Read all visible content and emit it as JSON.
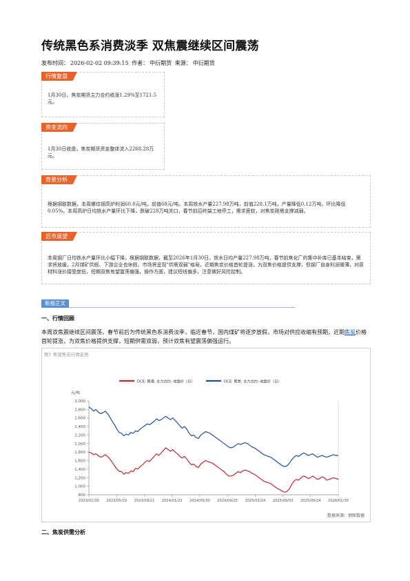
{
  "article": {
    "title": "传统黑色系消费淡季 双焦震继续区间震荡",
    "meta": {
      "publish_label": "发布时间：",
      "publish_time": "2026-02-02 09:39:15",
      "author_label": "作者：",
      "author": "中衍期货",
      "source_label": "来源：",
      "source": "中衍期货"
    }
  },
  "summary_boxes": [
    {
      "tag": "行情复盘",
      "text": "1月30日，焦炭期货主力合约收涨1.29%至1721.5元。"
    },
    {
      "tag": "资金流向",
      "text": "1月30日收盘，焦炭期货资金整体流入2268.28万元。"
    },
    {
      "tag": "背景分析",
      "text": "根据钢联数据，本周螺纹钢高炉利润60.8元/吨，前值68元/吨，本周铁水产量227.98万吨，前值228.1万吨，产量降低0.12万吨，环比降低0.05%。本周高炉日均铁水产量环比下降，跌破228万吨关口，春节前后终端工地停工，需求疲软，对焦炭刚需支撑减弱。"
    },
    {
      "tag": "后市展望",
      "text": "本周钢厂日均铁水产量环比小幅下降，根据钢联数据，截至2026年1月30日，铁水日均产量227.98万吨，春节前焦化厂的集中补库已基本结束，需求将放缓，2月煤矿供假、下游企业也休假，市场将呈现\"供需双弱\"格局，近期焦炭价格首轮提涨，为双焦价格提供支撑，但钢厂自身利润微薄，对原材料涨价接受度低，短期双焦有望震荡偏强，操作方面，建议短线偏多，注意做好风险控制。"
    }
  ],
  "section_label": "新报正文",
  "section1": {
    "heading": "一、行情回顾",
    "para_before": "本周双焦震继续区间震荡，春节前后为传统黑色系消费淡季，临近春节，国内煤矿将逐步放假，市场对供应收缩有预期，近期",
    "link": "焦炭",
    "para_after": "价格首轮提涨，为双焦价格提供支撑，短期供需双弱，预计双焦有望震荡偏强运行。"
  },
  "section2": {
    "heading": "二、焦炭供需分析"
  },
  "chart": {
    "caption": "图1 焦煤焦炭行情走势",
    "source": "数据来源：钢联数据"
  },
  "chart_data": {
    "type": "line",
    "ylabel": "元/吨",
    "ylim": [
      800,
      3000
    ],
    "yticks": [
      800,
      1000,
      1200,
      1400,
      1600,
      1800,
      2000,
      2200,
      2400,
      2600,
      2800,
      3000
    ],
    "ytick_labels": [
      "800",
      "1,000",
      "1,200",
      "1,400",
      "1,600",
      "1,800",
      "2,000",
      "2,200",
      "2,400",
      "2,600",
      "2,800",
      "3,000"
    ],
    "x_tick_labels": [
      "2023/01/30",
      "2023/05/29",
      "2023/09/21",
      "2024/01/23",
      "2024/05/30",
      "2024/09/25",
      "2025/01/24",
      "2025/06/03",
      "2025/09/24",
      "2026/01/30"
    ],
    "series": [
      {
        "name": "DCE: 焦煤: 主力合约: 收盘价（日）",
        "color": "#c0272d",
        "values": [
          1800,
          1780,
          1740,
          1760,
          1720,
          1680,
          1700,
          1740,
          1700,
          1640,
          1560,
          1480,
          1400,
          1350,
          1340,
          1280,
          1320,
          1300,
          1360,
          1340,
          1420,
          1400,
          1460,
          1500,
          1560,
          1600,
          1580,
          1640,
          1700,
          1760,
          1720,
          1780,
          1840,
          1900,
          1860,
          1820,
          1860,
          1800,
          1760,
          1700,
          1660,
          1700,
          1640,
          1560,
          1500,
          1520,
          1460,
          1440,
          1520,
          1560,
          1600,
          1580,
          1560,
          1540,
          1500,
          1460,
          1420,
          1380,
          1340,
          1280,
          1240,
          1240,
          1260,
          1300,
          1340,
          1320,
          1360,
          1380,
          1360,
          1340,
          1300,
          1280,
          1240,
          1200,
          1160,
          1120,
          1100,
          1080,
          1060,
          1020,
          980,
          940,
          920,
          880,
          860,
          880,
          940,
          1040,
          1120,
          1160,
          1140,
          1200,
          1240,
          1220,
          1180,
          1200,
          1240,
          1200,
          1160,
          1180,
          1220,
          1200,
          1140,
          1160,
          1180,
          1200,
          1180,
          1160
        ]
      },
      {
        "name": "DCE: 焦炭: 主力合约: 收盘价（日）",
        "color": "#1f4e9b",
        "values": [
          2860,
          2820,
          2760,
          2800,
          2740,
          2700,
          2720,
          2760,
          2700,
          2620,
          2520,
          2440,
          2340,
          2260,
          2240,
          2180,
          2220,
          2200,
          2260,
          2240,
          2300,
          2280,
          2340,
          2380,
          2420,
          2460,
          2440,
          2480,
          2520,
          2580,
          2540,
          2560,
          2600,
          2640,
          2600,
          2560,
          2600,
          2540,
          2480,
          2420,
          2360,
          2400,
          2340,
          2240,
          2180,
          2200,
          2140,
          2120,
          2200,
          2240,
          2280,
          2260,
          2240,
          2200,
          2160,
          2120,
          2080,
          2040,
          2000,
          1960,
          1920,
          1900,
          1920,
          1960,
          2000,
          1980,
          2000,
          2020,
          2000,
          1960,
          1920,
          1900,
          1860,
          1820,
          1780,
          1740,
          1720,
          1700,
          1680,
          1640,
          1600,
          1560,
          1520,
          1480,
          1460,
          1480,
          1540,
          1620,
          1680,
          1720,
          1700,
          1740,
          1780,
          1760,
          1720,
          1740,
          1760,
          1720,
          1680,
          1700,
          1720,
          1700,
          1680,
          1700,
          1720,
          1740,
          1720,
          1720
        ]
      }
    ]
  }
}
